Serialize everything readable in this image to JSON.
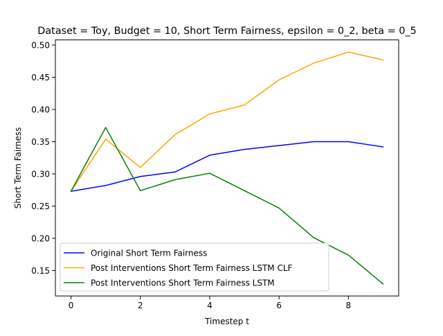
{
  "chart_data": {
    "type": "line",
    "title": "Dataset = Toy, Budget = 10, Short Term Fairness, epsilon = 0_2, beta = 0_5",
    "xlabel": "Timestep t",
    "ylabel": "Short Term Fairness",
    "xlim": [
      -0.45,
      9.45
    ],
    "ylim": [
      0.1105,
      0.508
    ],
    "xticks": [
      0,
      2,
      4,
      6,
      8
    ],
    "yticks": [
      0.15,
      0.2,
      0.25,
      0.3,
      0.35,
      0.4,
      0.45,
      0.5
    ],
    "xtick_labels": [
      "0",
      "2",
      "4",
      "6",
      "8"
    ],
    "ytick_labels": [
      "0.15",
      "0.20",
      "0.25",
      "0.30",
      "0.35",
      "0.40",
      "0.45",
      "0.50"
    ],
    "grid": false,
    "legend_position": "lower-left",
    "x": [
      0,
      1,
      2,
      3,
      4,
      5,
      6,
      7,
      8,
      9
    ],
    "series": [
      {
        "name": "Original Short Term Fairness",
        "color": "#0000ff",
        "values": [
          0.273,
          0.282,
          0.296,
          0.303,
          0.329,
          0.338,
          0.344,
          0.35,
          0.35,
          0.342
        ]
      },
      {
        "name": "Post Interventions Short Term Fairness LSTM CLF",
        "color": "#ffa500",
        "values": [
          0.273,
          0.354,
          0.31,
          0.361,
          0.393,
          0.407,
          0.446,
          0.472,
          0.489,
          0.477
        ]
      },
      {
        "name": "Post Interventions Short Term Fairness LSTM",
        "color": "#008000",
        "values": [
          0.273,
          0.372,
          0.274,
          0.291,
          0.301,
          0.274,
          0.247,
          0.201,
          0.174,
          0.129
        ]
      }
    ]
  }
}
